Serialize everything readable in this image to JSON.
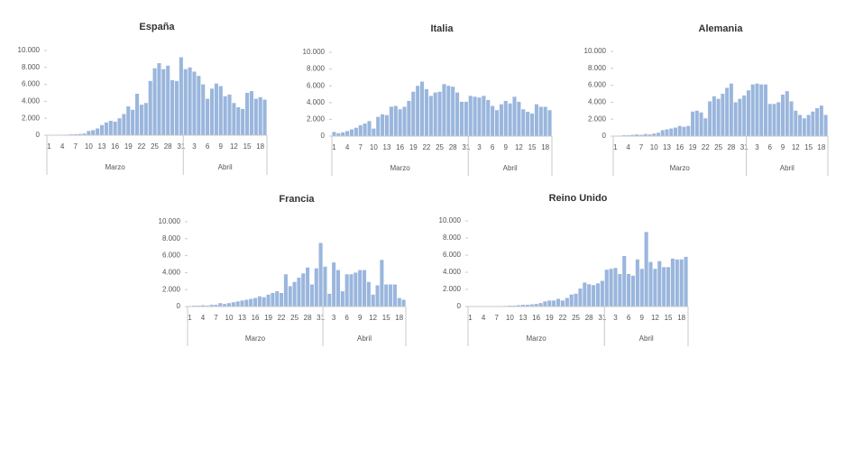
{
  "chart_data": [
    {
      "type": "bar",
      "title": "España",
      "color": "#9ab6dd",
      "categories": [
        "1",
        null,
        null,
        "4",
        null,
        null,
        "7",
        null,
        null,
        "10",
        null,
        null,
        "13",
        null,
        null,
        "16",
        null,
        null,
        "19",
        null,
        null,
        "22",
        null,
        null,
        "25",
        null,
        null,
        "28",
        null,
        null,
        "31",
        null,
        null,
        "3",
        null,
        null,
        "6",
        null,
        null,
        "9",
        null,
        null,
        "12",
        null,
        null,
        "15",
        null,
        null,
        "18",
        null
      ],
      "x_groups": [
        {
          "label": "Marzo",
          "size": 31
        },
        {
          "label": "Abril",
          "size": 19
        }
      ],
      "values": [
        20,
        30,
        40,
        60,
        70,
        100,
        120,
        150,
        200,
        500,
        600,
        800,
        1200,
        1500,
        1700,
        1600,
        2000,
        2500,
        3400,
        3000,
        4900,
        3600,
        3800,
        6400,
        7900,
        8500,
        7800,
        8200,
        6500,
        6400,
        9200,
        7800,
        8000,
        7500,
        7000,
        6000,
        4300,
        5500,
        6100,
        5800,
        4600,
        4800,
        3800,
        3300,
        3100,
        5000,
        5200,
        4300,
        4500,
        4200
      ],
      "ylim": [
        0,
        10000
      ],
      "yticks": [
        0,
        {
          "value": 2000,
          "label": "2.000"
        },
        {
          "value": 4000,
          "label": "4.000"
        },
        {
          "value": 6000,
          "label": "6.000"
        },
        {
          "value": 8000,
          "label": "8.000"
        },
        {
          "value": 10000,
          "label": "10.000"
        }
      ]
    },
    {
      "type": "bar",
      "title": "Italia",
      "color": "#9ab6dd",
      "categories": [
        "1",
        null,
        null,
        "4",
        null,
        null,
        "7",
        null,
        null,
        "10",
        null,
        null,
        "13",
        null,
        null,
        "16",
        null,
        null,
        "19",
        null,
        null,
        "22",
        null,
        null,
        "25",
        null,
        null,
        "28",
        null,
        null,
        "31",
        null,
        null,
        "3",
        null,
        null,
        "6",
        null,
        null,
        "9",
        null,
        null,
        "12",
        null,
        null,
        "15",
        null,
        null,
        "18",
        null
      ],
      "x_groups": [
        {
          "label": "Marzo",
          "size": 31
        },
        {
          "label": "Abril",
          "size": 19
        }
      ],
      "values": [
        500,
        350,
        450,
        600,
        800,
        1000,
        1300,
        1500,
        1800,
        900,
        2300,
        2600,
        2500,
        3500,
        3600,
        3200,
        3500,
        4200,
        5300,
        6000,
        6500,
        5600,
        4800,
        5200,
        5300,
        6200,
        6000,
        5900,
        5200,
        4100,
        4100,
        4800,
        4700,
        4600,
        4800,
        4300,
        3600,
        3100,
        3800,
        4200,
        3900,
        4700,
        4100,
        3200,
        2900,
        2700,
        3800,
        3500,
        3500,
        3100
      ],
      "ylim": [
        0,
        10000
      ],
      "yticks": [
        0,
        {
          "value": 2000,
          "label": "2.000"
        },
        {
          "value": 4000,
          "label": "4.000"
        },
        {
          "value": 6000,
          "label": "6.000"
        },
        {
          "value": 8000,
          "label": "8.000"
        },
        {
          "value": 10000,
          "label": "10.000"
        }
      ]
    },
    {
      "type": "bar",
      "title": "Alemania",
      "color": "#9ab6dd",
      "categories": [
        "1",
        null,
        null,
        "4",
        null,
        null,
        "7",
        null,
        null,
        "10",
        null,
        null,
        "13",
        null,
        null,
        "16",
        null,
        null,
        "19",
        null,
        null,
        "22",
        null,
        null,
        "25",
        null,
        null,
        "28",
        null,
        null,
        "31",
        null,
        null,
        "3",
        null,
        null,
        "6",
        null,
        null,
        "9",
        null,
        null,
        "12",
        null,
        null,
        "15",
        null,
        null,
        "18",
        null
      ],
      "x_groups": [
        {
          "label": "Marzo",
          "size": 31
        },
        {
          "label": "Abril",
          "size": 19
        }
      ],
      "values": [
        50,
        50,
        100,
        100,
        150,
        200,
        150,
        250,
        200,
        300,
        400,
        700,
        800,
        900,
        1000,
        1200,
        1100,
        1200,
        2900,
        3000,
        2800,
        2100,
        4100,
        4700,
        4400,
        5000,
        5700,
        6200,
        4000,
        4400,
        4800,
        5400,
        6100,
        6200,
        6100,
        6100,
        3800,
        3800,
        4000,
        4900,
        5300,
        4100,
        3000,
        2500,
        2100,
        2500,
        2900,
        3300,
        3600,
        2500
      ],
      "ylim": [
        0,
        10000
      ],
      "yticks": [
        0,
        {
          "value": 2000,
          "label": "2.000"
        },
        {
          "value": 4000,
          "label": "4.000"
        },
        {
          "value": 6000,
          "label": "6.000"
        },
        {
          "value": 8000,
          "label": "8.000"
        },
        {
          "value": 10000,
          "label": "10.000"
        }
      ]
    },
    {
      "type": "bar",
      "title": "Francia",
      "color": "#9ab6dd",
      "categories": [
        "1",
        null,
        null,
        "4",
        null,
        null,
        "7",
        null,
        null,
        "10",
        null,
        null,
        "13",
        null,
        null,
        "16",
        null,
        null,
        "19",
        null,
        null,
        "22",
        null,
        null,
        "25",
        null,
        null,
        "28",
        null,
        null,
        "31",
        null,
        null,
        "3",
        null,
        null,
        "6",
        null,
        null,
        "9",
        null,
        null,
        "12",
        null,
        null,
        "15",
        null,
        null,
        "18",
        null
      ],
      "x_groups": [
        {
          "label": "Marzo",
          "size": 31
        },
        {
          "label": "Abril",
          "size": 19
        }
      ],
      "values": [
        50,
        100,
        100,
        150,
        100,
        200,
        200,
        400,
        300,
        400,
        500,
        600,
        700,
        800,
        900,
        1000,
        1200,
        1100,
        1400,
        1600,
        1800,
        1600,
        3800,
        2400,
        2900,
        3400,
        3900,
        4600,
        2600,
        4500,
        7500,
        4700,
        1500,
        5200,
        4300,
        1800,
        3800,
        3800,
        4000,
        4300,
        4300,
        2900,
        1400,
        2500,
        5500,
        2600,
        2600,
        2600,
        1000,
        800
      ],
      "ylim": [
        0,
        10000
      ],
      "yticks": [
        0,
        {
          "value": 2000,
          "label": "2.000"
        },
        {
          "value": 4000,
          "label": "4.000"
        },
        {
          "value": 6000,
          "label": "6.000"
        },
        {
          "value": 8000,
          "label": "8.000"
        },
        {
          "value": 10000,
          "label": "10.000"
        }
      ]
    },
    {
      "type": "bar",
      "title": "Reino Unido",
      "color": "#9ab6dd",
      "categories": [
        "1",
        null,
        null,
        "4",
        null,
        null,
        "7",
        null,
        null,
        "10",
        null,
        null,
        "13",
        null,
        null,
        "16",
        null,
        null,
        "19",
        null,
        null,
        "22",
        null,
        null,
        "25",
        null,
        null,
        "28",
        null,
        null,
        "31",
        null,
        null,
        "3",
        null,
        null,
        "6",
        null,
        null,
        "9",
        null,
        null,
        "12",
        null,
        null,
        "15",
        null,
        null,
        "18",
        null
      ],
      "x_groups": [
        {
          "label": "Marzo",
          "size": 31
        },
        {
          "label": "Abril",
          "size": 19
        }
      ],
      "values": [
        10,
        10,
        20,
        30,
        40,
        50,
        60,
        50,
        70,
        100,
        100,
        150,
        200,
        200,
        250,
        300,
        400,
        600,
        700,
        700,
        900,
        700,
        1000,
        1400,
        1500,
        2100,
        2800,
        2600,
        2500,
        2700,
        3000,
        4300,
        4400,
        4500,
        3800,
        5900,
        3800,
        3600,
        5500,
        4400,
        8700,
        5200,
        4400,
        5300,
        4600,
        4600,
        5600,
        5500,
        5500,
        5800
      ],
      "ylim": [
        0,
        10000
      ],
      "yticks": [
        0,
        {
          "value": 2000,
          "label": "2.000"
        },
        {
          "value": 4000,
          "label": "4.000"
        },
        {
          "value": 6000,
          "label": "6.000"
        },
        {
          "value": 8000,
          "label": "8.000"
        },
        {
          "value": 10000,
          "label": "10.000"
        }
      ]
    }
  ]
}
